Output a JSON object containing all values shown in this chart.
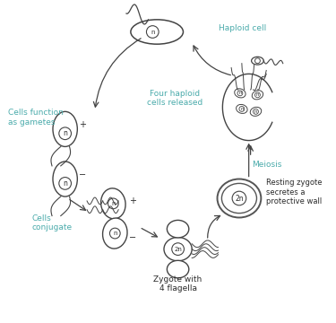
{
  "bg_color": "#ffffff",
  "text_color_black": "#2a2a2a",
  "text_color_teal": "#4aabab",
  "labels": {
    "haploid_cell": "Haploid cell",
    "four_haploid": "Four haploid\ncells released",
    "meiosis": "Meiosis",
    "resting_zygote": "Resting zygote\nsecretes a\nprotective wall",
    "zygote_4flagella": "Zygote with\n4 flagella",
    "cells_conjugate": "Cells\nconjugate",
    "cells_gametes": "Cells function\nas gametes"
  }
}
